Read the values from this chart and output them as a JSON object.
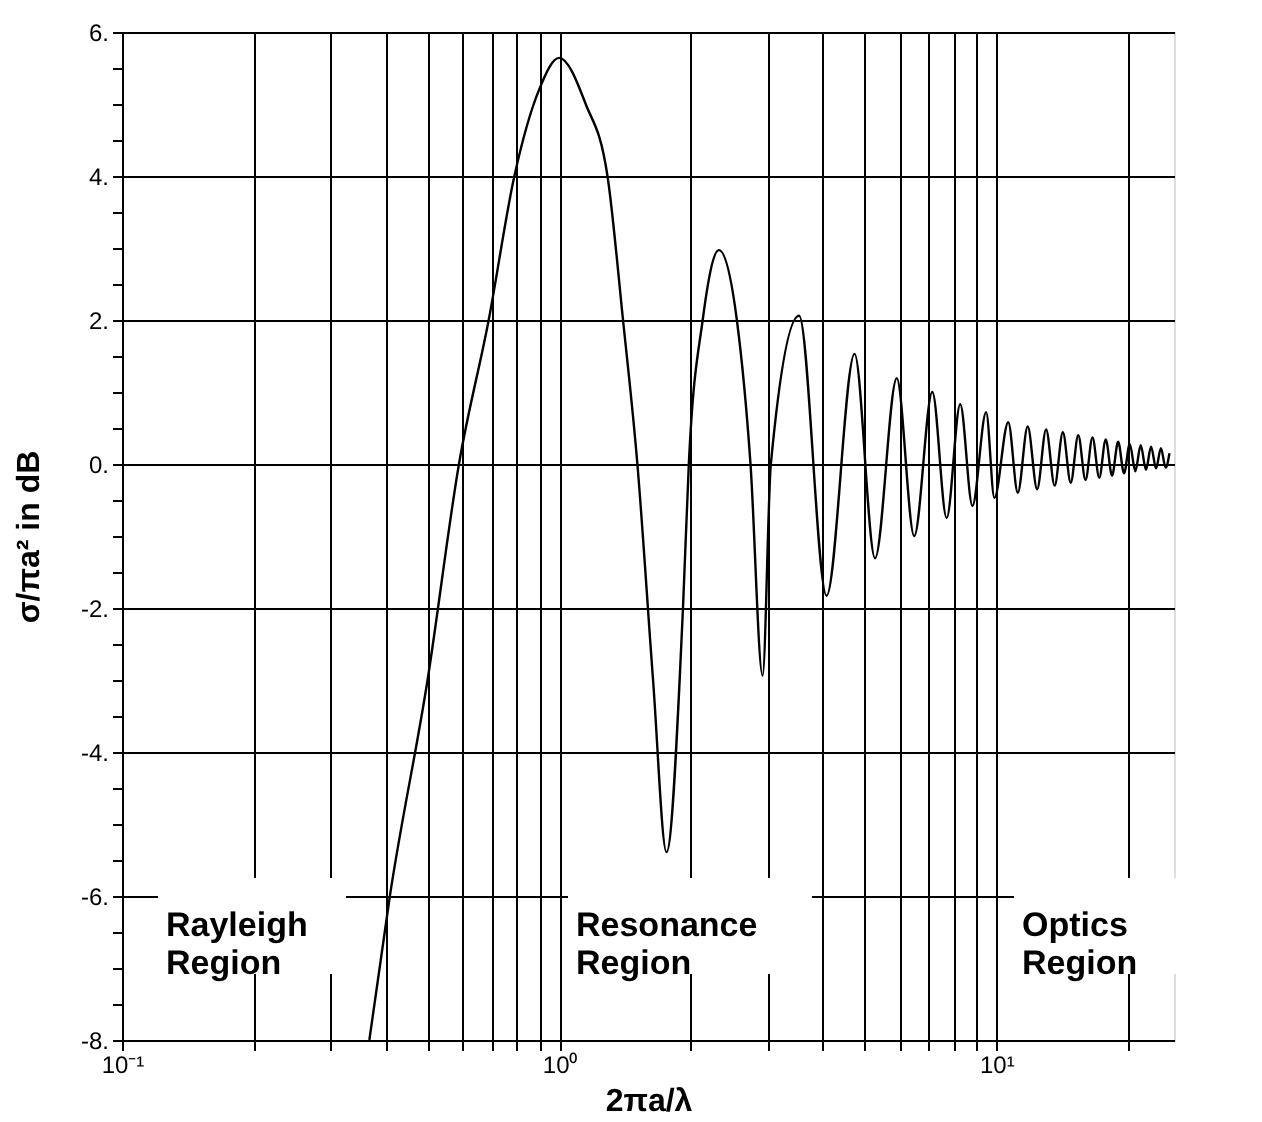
{
  "chart_data": {
    "type": "line",
    "xlabel": "2πa/λ",
    "ylabel": "σ/πa² in dB",
    "log": "x",
    "grid": true,
    "marker": "none",
    "line_style": "solid",
    "legend": false,
    "xlim": [
      0.1,
      25.5
    ],
    "ylim": [
      -8,
      6
    ],
    "xticks": [
      {
        "value": 0.1,
        "label": "10⁻¹"
      },
      {
        "value": 0.2,
        "label": null
      },
      {
        "value": 0.3,
        "label": null
      },
      {
        "value": 0.4,
        "label": null
      },
      {
        "value": 0.5,
        "label": null
      },
      {
        "value": 0.6,
        "label": null
      },
      {
        "value": 0.7,
        "label": null
      },
      {
        "value": 0.8,
        "label": null
      },
      {
        "value": 0.9,
        "label": null
      },
      {
        "value": 1,
        "label": "10⁰"
      },
      {
        "value": 2,
        "label": null
      },
      {
        "value": 3,
        "label": null
      },
      {
        "value": 4,
        "label": null
      },
      {
        "value": 5,
        "label": null
      },
      {
        "value": 6,
        "label": null
      },
      {
        "value": 7,
        "label": null
      },
      {
        "value": 8,
        "label": null
      },
      {
        "value": 9,
        "label": null
      },
      {
        "value": 10,
        "label": "10¹"
      },
      {
        "value": 20,
        "label": null
      }
    ],
    "yticks": [
      {
        "value": -8,
        "label": "-8."
      },
      {
        "value": -7.5,
        "label": null
      },
      {
        "value": -7,
        "label": null
      },
      {
        "value": -6.5,
        "label": null
      },
      {
        "value": -6,
        "label": "-6."
      },
      {
        "value": -5.5,
        "label": null
      },
      {
        "value": -5,
        "label": null
      },
      {
        "value": -4.5,
        "label": null
      },
      {
        "value": -4,
        "label": "-4."
      },
      {
        "value": -3.5,
        "label": null
      },
      {
        "value": -3,
        "label": null
      },
      {
        "value": -2.5,
        "label": null
      },
      {
        "value": -2,
        "label": "-2."
      },
      {
        "value": -1.5,
        "label": null
      },
      {
        "value": -1,
        "label": null
      },
      {
        "value": -0.5,
        "label": null
      },
      {
        "value": 0,
        "label": "0."
      },
      {
        "value": 0.5,
        "label": null
      },
      {
        "value": 1,
        "label": null
      },
      {
        "value": 1.5,
        "label": null
      },
      {
        "value": 2,
        "label": "2."
      },
      {
        "value": 2.5,
        "label": null
      },
      {
        "value": 3,
        "label": null
      },
      {
        "value": 3.5,
        "label": null
      },
      {
        "value": 4,
        "label": "4."
      },
      {
        "value": 4.5,
        "label": null
      },
      {
        "value": 5,
        "label": null
      },
      {
        "value": 5.5,
        "label": null
      },
      {
        "value": 6,
        "label": "6."
      }
    ],
    "annotations": [
      "Rayleigh\nRegion",
      "Resonance\nRegion",
      "Optics\nRegion"
    ],
    "series": [
      {
        "color": "#000000",
        "x": [
          0.368,
          0.41,
          0.5,
          0.59,
          0.69,
          0.79,
          0.9,
          1.0,
          1.15,
          1.29,
          1.4,
          1.51,
          1.64,
          1.76,
          1.92,
          1.98,
          2.13,
          2.32,
          2.55,
          2.74,
          2.92,
          3.05,
          3.54,
          4.09,
          4.74,
          5.28,
          5.92,
          6.49,
          7.14,
          7.7,
          8.27,
          8.82,
          9.48,
          9.9,
          10.65,
          11.2,
          11.8,
          12.4,
          13.0,
          13.6,
          14.2,
          14.8,
          15.4,
          16.0,
          16.6,
          17.2,
          17.8,
          18.4,
          19.0,
          19.6,
          20.2,
          20.8,
          21.4,
          22.0,
          22.6,
          23.2,
          23.8,
          24.4,
          24.9
        ],
        "values": [
          -8,
          -6,
          -3,
          0,
          2,
          4,
          5.2,
          5.64,
          5.0,
          4,
          2,
          0,
          -3,
          -5.39,
          -2,
          0,
          2,
          2.97,
          2,
          0,
          -2.94,
          0,
          2.06,
          -1.83,
          1.53,
          -1.31,
          1.19,
          -1.0,
          1.0,
          -0.75,
          0.83,
          -0.58,
          0.72,
          -0.47,
          0.58,
          -0.4,
          0.52,
          -0.35,
          0.48,
          -0.3,
          0.44,
          -0.26,
          0.4,
          -0.22,
          0.37,
          -0.19,
          0.34,
          -0.16,
          0.31,
          -0.13,
          0.28,
          -0.1,
          0.26,
          -0.08,
          0.24,
          -0.06,
          0.22,
          -0.05,
          0.15
        ]
      }
    ]
  }
}
